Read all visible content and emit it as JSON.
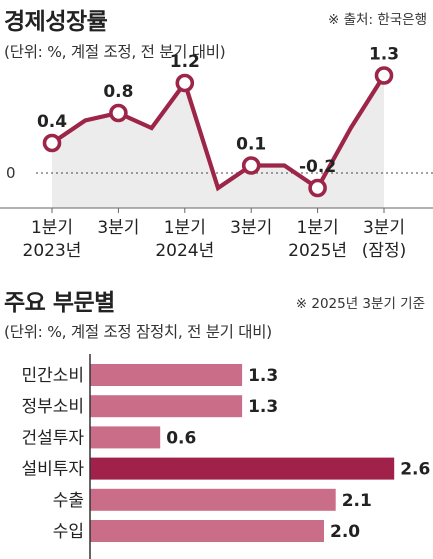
{
  "charts": {
    "growth": {
      "title": "경제성장률",
      "source": "※ 출처: 한국은행",
      "unit_note": "(단위: %, 계절 조정, 전 분기 대비)"
    },
    "sectors": {
      "title": "주요 부문별",
      "basis": "※ 2025년 3분기 기준",
      "unit_note": "(단위: %, 계절 조정 잠정치, 전 분기 대비)"
    }
  },
  "colors": {
    "line": "#9c2548",
    "area": "#ececec",
    "bar": "#c96d88",
    "bar_highlight": "#a0214a",
    "text": "#222222"
  },
  "chart_data": [
    {
      "type": "line",
      "title": "경제성장률",
      "x": [
        "2023 Q1",
        "2023 Q2",
        "2023 Q3",
        "2023 Q4",
        "2024 Q1",
        "2024 Q2",
        "2024 Q3",
        "2024 Q4",
        "2025 Q1",
        "2025 Q2",
        "2025 Q3"
      ],
      "y": [
        0.4,
        0.7,
        0.8,
        0.6,
        1.2,
        -0.2,
        0.1,
        0.1,
        -0.2,
        0.6,
        1.3
      ],
      "labeled_points": [
        {
          "index": 0,
          "label": "0.4"
        },
        {
          "index": 2,
          "label": "0.8"
        },
        {
          "index": 4,
          "label": "1.2"
        },
        {
          "index": 6,
          "label": "0.1"
        },
        {
          "index": 8,
          "label": "-0.2"
        },
        {
          "index": 10,
          "label": "1.3"
        }
      ],
      "tick_labels": [
        {
          "index": 0,
          "line1": "1분기",
          "line2": "2023년"
        },
        {
          "index": 2,
          "line1": "3분기",
          "line2": ""
        },
        {
          "index": 4,
          "line1": "1분기",
          "line2": "2024년"
        },
        {
          "index": 6,
          "line1": "3분기",
          "line2": ""
        },
        {
          "index": 8,
          "line1": "1분기",
          "line2": "2025년"
        },
        {
          "index": 10,
          "line1": "3분기",
          "line2": "(잠정)"
        }
      ],
      "zero_label": "0",
      "ylim": [
        -0.5,
        1.5
      ],
      "area_fill": true
    },
    {
      "type": "bar",
      "orientation": "horizontal",
      "title": "주요 부문별",
      "categories": [
        "민간소비",
        "정부소비",
        "건설투자",
        "설비투자",
        "수출",
        "수입"
      ],
      "values": [
        1.3,
        1.3,
        0.6,
        2.6,
        2.1,
        2.0
      ],
      "value_labels": [
        "1.3",
        "1.3",
        "0.6",
        "2.6",
        "2.1",
        "2.0"
      ],
      "highlight": "설비투자",
      "xlim": [
        0,
        2.6
      ]
    }
  ]
}
